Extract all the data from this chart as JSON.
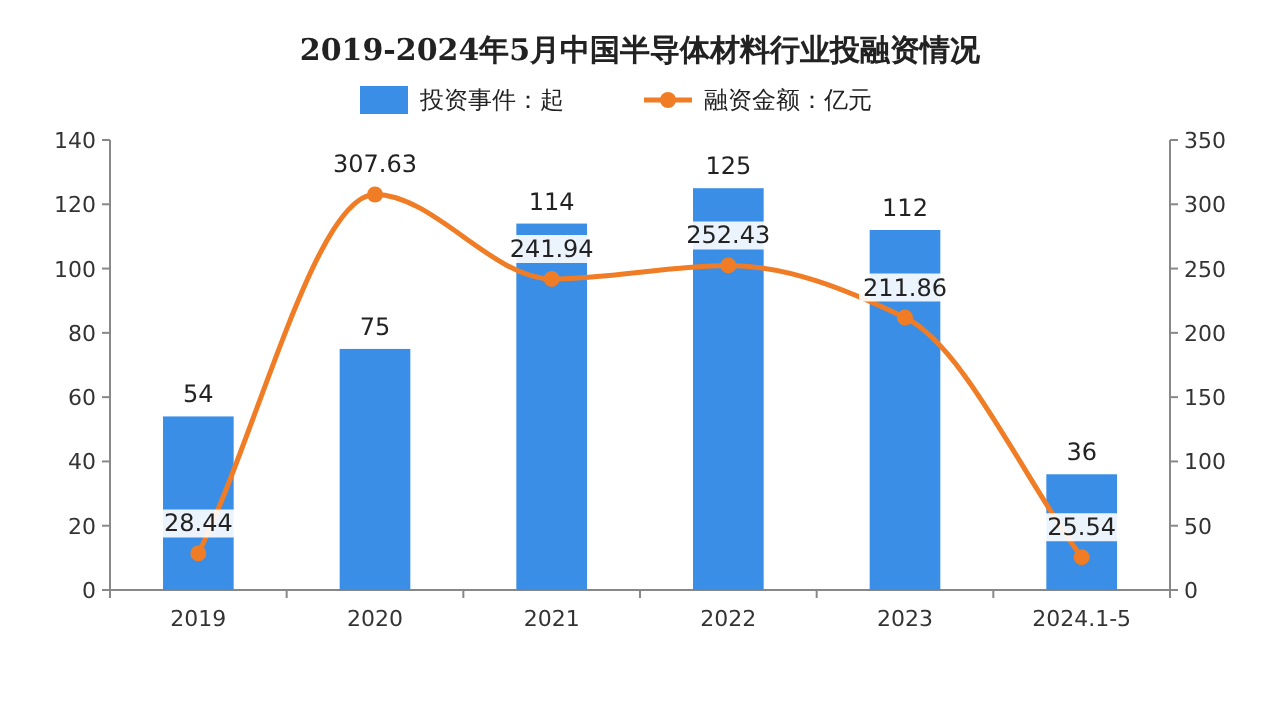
{
  "chart_data": {
    "type": "bar",
    "title": "2019-2024年5月中国半导体材料行业投融资情况",
    "categories": [
      "2019",
      "2020",
      "2021",
      "2022",
      "2023",
      "2024.1-5"
    ],
    "series": [
      {
        "name": "投资事件：起",
        "color": "#3a8ee6",
        "values": [
          54,
          75,
          114,
          125,
          112,
          36
        ]
      },
      {
        "name": "融资金额：亿元",
        "type": "line",
        "axis": "y2",
        "color": "#f07d26",
        "marker": "circle",
        "values": [
          28.44,
          307.63,
          241.94,
          252.43,
          211.86,
          25.54
        ]
      }
    ],
    "ylim": [
      0,
      140
    ],
    "yticks": [
      0,
      20,
      40,
      60,
      80,
      100,
      120,
      140
    ],
    "y2lim": [
      0,
      350
    ],
    "y2ticks": [
      0,
      50,
      100,
      150,
      200,
      250,
      300,
      350
    ],
    "data_labels": true,
    "legend": "top"
  }
}
